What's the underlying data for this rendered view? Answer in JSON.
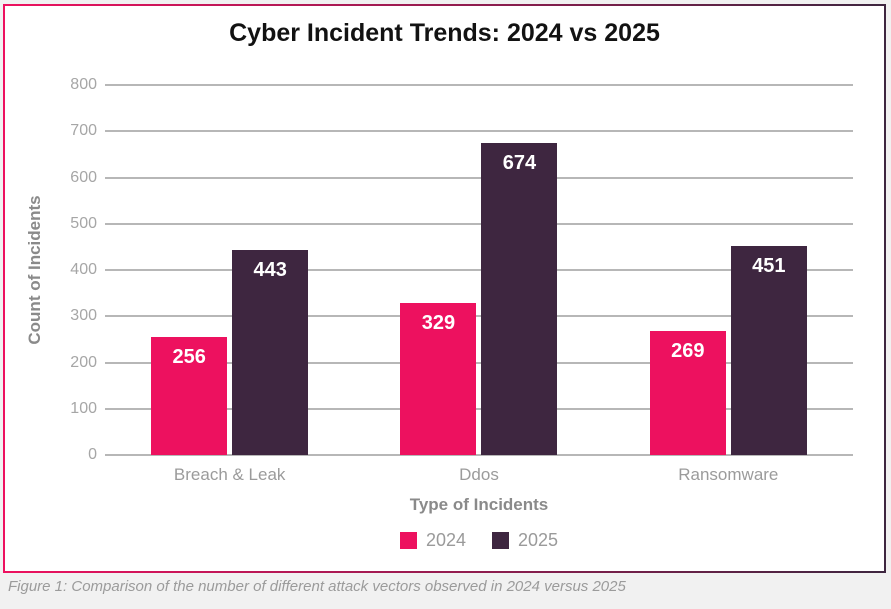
{
  "page": {
    "caption": "Figure 1: Comparison of the number of different attack vectors observed in 2024 versus 2025"
  },
  "chart_data": {
    "type": "bar",
    "title": "Cyber Incident Trends: 2024 vs 2025",
    "categories": [
      "Breach & Leak",
      "Ddos",
      "Ransomware"
    ],
    "series": [
      {
        "name": "2024",
        "values": [
          256,
          329,
          269
        ],
        "color": "#ED115F"
      },
      {
        "name": "2025",
        "values": [
          443,
          674,
          451
        ],
        "color": "#3E2640"
      }
    ],
    "xlabel": "Type of Incidents",
    "ylabel": "Count of Incidents",
    "ylim": [
      0,
      800
    ],
    "ytick_step": 100,
    "grid": true,
    "legend_position": "bottom",
    "value_labels": "inside-top",
    "value_label_color": "#FFFFFF"
  },
  "style": {
    "page_background": "#F1F1F1",
    "card_background": "#FFFFFF",
    "border_gradient_start": "#ED115F",
    "border_gradient_end": "#3E2640",
    "gridline_color": "#B7B7B7",
    "tick_label_color": "#A6A6A6",
    "axis_title_color": "#8A8A8A",
    "category_label_color": "#9B9B9B",
    "legend_label_color": "#9A9A9A",
    "title_color": "#121212",
    "caption_color": "#9B9B9B"
  }
}
